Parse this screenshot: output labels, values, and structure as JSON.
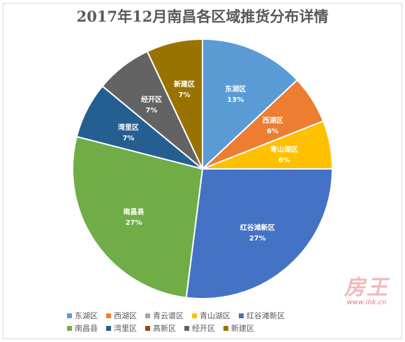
{
  "chart_data": {
    "type": "pie",
    "title": "2017年12月南昌各区域推货分布详情",
    "slices": [
      {
        "name": "东湖区",
        "value": 13,
        "label": "13%",
        "color": "#5B9BD5"
      },
      {
        "name": "西湖区",
        "value": 6,
        "label": "6%",
        "color": "#ED7D31"
      },
      {
        "name": "青云谱区",
        "value": 0,
        "label": "",
        "color": "#A5A5A5"
      },
      {
        "name": "青山湖区",
        "value": 6,
        "label": "6%",
        "color": "#FFC000"
      },
      {
        "name": "红谷滩新区",
        "value": 27,
        "label": "27%",
        "color": "#4472C4"
      },
      {
        "name": "南昌县",
        "value": 27,
        "label": "27%",
        "color": "#70AD47"
      },
      {
        "name": "湾里区",
        "value": 7,
        "label": "7%",
        "color": "#255E91"
      },
      {
        "name": "高新区",
        "value": 0,
        "label": "",
        "color": "#9E480E"
      },
      {
        "name": "经开区",
        "value": 7,
        "label": "7%",
        "color": "#636363"
      },
      {
        "name": "新建区",
        "value": 7,
        "label": "7%",
        "color": "#997300"
      }
    ],
    "legend": "bottom"
  },
  "legend_rows": [
    [
      "东湖区",
      "西湖区",
      "青云谱区",
      "青山湖区",
      "红谷滩新区"
    ],
    [
      "南昌县",
      "湾里区",
      "高新区",
      "经开区",
      "新建区"
    ]
  ],
  "watermark": {
    "logo": "房王",
    "url": "www.ihk.cn"
  }
}
